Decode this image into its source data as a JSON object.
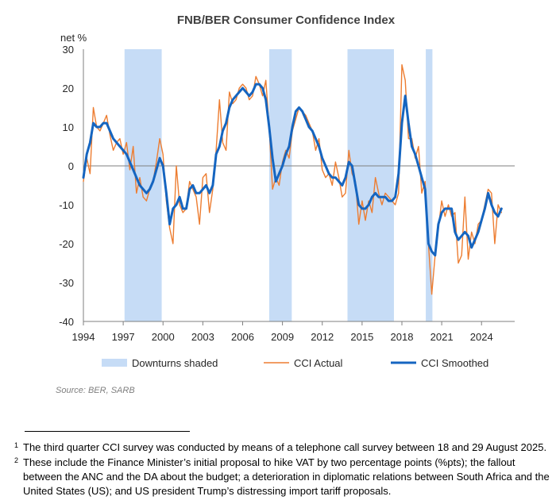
{
  "chart_data": {
    "type": "line",
    "title": "FNB/BER Consumer Confidence Index",
    "ylabel": "net %",
    "ylim": [
      -40,
      30
    ],
    "yticks": [
      30,
      20,
      10,
      0,
      -10,
      -20,
      -30,
      -40
    ],
    "xlim": [
      1994,
      2026.5
    ],
    "xticks": [
      "1994",
      "1997",
      "2000",
      "2003",
      "2006",
      "2009",
      "2012",
      "2015",
      "2018",
      "2021",
      "2024"
    ],
    "colors": {
      "actual": "#ED7D31",
      "smoothed": "#1565C0",
      "downturn": "#C6DCF6",
      "axis": "#7f7f7f"
    },
    "downturns": [
      [
        1997.1,
        1999.9
      ],
      [
        2008.0,
        2009.7
      ],
      [
        2013.9,
        2017.4
      ],
      [
        2019.8,
        2020.3
      ]
    ],
    "legend": [
      {
        "label": "Downturns shaded",
        "kind": "band"
      },
      {
        "label": "CCI Actual",
        "kind": "actual"
      },
      {
        "label": "CCI Smoothed",
        "kind": "smoothed"
      }
    ],
    "source": "Source: BER, SARB",
    "series": [
      {
        "name": "CCI Actual",
        "points": [
          [
            1994.0,
            -4
          ],
          [
            1994.25,
            2
          ],
          [
            1994.5,
            -2
          ],
          [
            1994.75,
            15
          ],
          [
            1995.0,
            10
          ],
          [
            1995.25,
            9
          ],
          [
            1995.5,
            11
          ],
          [
            1995.75,
            13
          ],
          [
            1996.0,
            8
          ],
          [
            1996.25,
            4
          ],
          [
            1996.5,
            6
          ],
          [
            1996.75,
            7
          ],
          [
            1997.0,
            3
          ],
          [
            1997.25,
            6
          ],
          [
            1997.5,
            -1
          ],
          [
            1997.75,
            5
          ],
          [
            1998.0,
            -7
          ],
          [
            1998.25,
            -3
          ],
          [
            1998.5,
            -8
          ],
          [
            1998.75,
            -9
          ],
          [
            1999.0,
            -6
          ],
          [
            1999.25,
            -4
          ],
          [
            1999.5,
            1
          ],
          [
            1999.75,
            7
          ],
          [
            2000.0,
            3
          ],
          [
            2000.25,
            -9
          ],
          [
            2000.5,
            -16
          ],
          [
            2000.75,
            -20
          ],
          [
            2001.0,
            0
          ],
          [
            2001.25,
            -10
          ],
          [
            2001.5,
            -12
          ],
          [
            2001.75,
            -11
          ],
          [
            2002.0,
            -4
          ],
          [
            2002.25,
            -6
          ],
          [
            2002.5,
            -8
          ],
          [
            2002.75,
            -15
          ],
          [
            2003.0,
            -3
          ],
          [
            2003.25,
            -2
          ],
          [
            2003.5,
            -12
          ],
          [
            2003.75,
            -6
          ],
          [
            2004.0,
            4
          ],
          [
            2004.25,
            17
          ],
          [
            2004.5,
            6
          ],
          [
            2004.75,
            4
          ],
          [
            2005.0,
            19
          ],
          [
            2005.25,
            16
          ],
          [
            2005.5,
            17
          ],
          [
            2005.75,
            20
          ],
          [
            2006.0,
            21
          ],
          [
            2006.25,
            20
          ],
          [
            2006.5,
            17
          ],
          [
            2006.75,
            18
          ],
          [
            2007.0,
            23
          ],
          [
            2007.25,
            21
          ],
          [
            2007.5,
            18
          ],
          [
            2007.75,
            22
          ],
          [
            2008.0,
            10
          ],
          [
            2008.25,
            -6
          ],
          [
            2008.5,
            -3
          ],
          [
            2008.75,
            -5
          ],
          [
            2009.0,
            1
          ],
          [
            2009.25,
            4
          ],
          [
            2009.5,
            2
          ],
          [
            2009.75,
            9
          ],
          [
            2010.0,
            12
          ],
          [
            2010.25,
            15
          ],
          [
            2010.5,
            14
          ],
          [
            2010.75,
            13
          ],
          [
            2011.0,
            11
          ],
          [
            2011.25,
            9
          ],
          [
            2011.5,
            4
          ],
          [
            2011.75,
            7
          ],
          [
            2012.0,
            -1
          ],
          [
            2012.25,
            -3
          ],
          [
            2012.5,
            -2
          ],
          [
            2012.75,
            -5
          ],
          [
            2013.0,
            1
          ],
          [
            2013.25,
            -3
          ],
          [
            2013.5,
            -8
          ],
          [
            2013.75,
            -7
          ],
          [
            2014.0,
            4
          ],
          [
            2014.25,
            -2
          ],
          [
            2014.5,
            -4
          ],
          [
            2014.75,
            -15
          ],
          [
            2015.0,
            -9
          ],
          [
            2015.25,
            -14
          ],
          [
            2015.5,
            -9
          ],
          [
            2015.75,
            -12
          ],
          [
            2016.0,
            -3
          ],
          [
            2016.25,
            -7
          ],
          [
            2016.5,
            -10
          ],
          [
            2016.75,
            -7
          ],
          [
            2017.0,
            -8
          ],
          [
            2017.25,
            -9
          ],
          [
            2017.5,
            -10
          ],
          [
            2017.75,
            -7
          ],
          [
            2018.0,
            26
          ],
          [
            2018.25,
            22
          ],
          [
            2018.5,
            7
          ],
          [
            2018.75,
            7
          ],
          [
            2019.0,
            2
          ],
          [
            2019.25,
            5
          ],
          [
            2019.5,
            -7
          ],
          [
            2019.75,
            -4
          ],
          [
            2020.0,
            -20
          ],
          [
            2020.25,
            -33
          ],
          [
            2020.5,
            -23
          ],
          [
            2020.75,
            -16
          ],
          [
            2021.0,
            -9
          ],
          [
            2021.25,
            -13
          ],
          [
            2021.5,
            -10
          ],
          [
            2021.75,
            -13
          ],
          [
            2022.0,
            -12
          ],
          [
            2022.25,
            -25
          ],
          [
            2022.5,
            -23
          ],
          [
            2022.75,
            -8
          ],
          [
            2023.0,
            -24
          ],
          [
            2023.25,
            -17
          ],
          [
            2023.5,
            -20
          ],
          [
            2023.75,
            -15
          ],
          [
            2024.0,
            -14
          ],
          [
            2024.25,
            -10
          ],
          [
            2024.5,
            -6
          ],
          [
            2024.75,
            -7
          ],
          [
            2025.0,
            -20
          ],
          [
            2025.25,
            -10
          ],
          [
            2025.5,
            -12
          ]
        ]
      },
      {
        "name": "CCI Smoothed",
        "points": [
          [
            1994.0,
            -3
          ],
          [
            1994.25,
            3
          ],
          [
            1994.5,
            6
          ],
          [
            1994.75,
            11
          ],
          [
            1995.0,
            10
          ],
          [
            1995.25,
            10
          ],
          [
            1995.5,
            11
          ],
          [
            1995.75,
            11
          ],
          [
            1996.0,
            9
          ],
          [
            1996.25,
            7
          ],
          [
            1996.5,
            6
          ],
          [
            1996.75,
            5
          ],
          [
            1997.0,
            4
          ],
          [
            1997.25,
            3
          ],
          [
            1997.5,
            1
          ],
          [
            1997.75,
            -1
          ],
          [
            1998.0,
            -3
          ],
          [
            1998.25,
            -5
          ],
          [
            1998.5,
            -6
          ],
          [
            1998.75,
            -7
          ],
          [
            1999.0,
            -6
          ],
          [
            1999.25,
            -4
          ],
          [
            1999.5,
            -1
          ],
          [
            1999.75,
            2
          ],
          [
            2000.0,
            0
          ],
          [
            2000.25,
            -7
          ],
          [
            2000.5,
            -15
          ],
          [
            2000.75,
            -11
          ],
          [
            2001.0,
            -10
          ],
          [
            2001.25,
            -8
          ],
          [
            2001.5,
            -11
          ],
          [
            2001.75,
            -11
          ],
          [
            2002.0,
            -6
          ],
          [
            2002.25,
            -5
          ],
          [
            2002.5,
            -7
          ],
          [
            2002.75,
            -7
          ],
          [
            2003.0,
            -6
          ],
          [
            2003.25,
            -5
          ],
          [
            2003.5,
            -7
          ],
          [
            2003.75,
            -5
          ],
          [
            2004.0,
            3
          ],
          [
            2004.25,
            5
          ],
          [
            2004.5,
            9
          ],
          [
            2004.75,
            11
          ],
          [
            2005.0,
            15
          ],
          [
            2005.25,
            17
          ],
          [
            2005.5,
            18
          ],
          [
            2005.75,
            19
          ],
          [
            2006.0,
            20
          ],
          [
            2006.25,
            19
          ],
          [
            2006.5,
            18
          ],
          [
            2006.75,
            19
          ],
          [
            2007.0,
            21
          ],
          [
            2007.25,
            21
          ],
          [
            2007.5,
            20
          ],
          [
            2007.75,
            17
          ],
          [
            2008.0,
            10
          ],
          [
            2008.25,
            2
          ],
          [
            2008.5,
            -4
          ],
          [
            2008.75,
            -2
          ],
          [
            2009.0,
            0
          ],
          [
            2009.25,
            3
          ],
          [
            2009.5,
            5
          ],
          [
            2009.75,
            10
          ],
          [
            2010.0,
            14
          ],
          [
            2010.25,
            15
          ],
          [
            2010.5,
            14
          ],
          [
            2010.75,
            12
          ],
          [
            2011.0,
            10
          ],
          [
            2011.25,
            9
          ],
          [
            2011.5,
            7
          ],
          [
            2011.75,
            5
          ],
          [
            2012.0,
            2
          ],
          [
            2012.25,
            0
          ],
          [
            2012.5,
            -2
          ],
          [
            2012.75,
            -3
          ],
          [
            2013.0,
            -3
          ],
          [
            2013.25,
            -4
          ],
          [
            2013.5,
            -5
          ],
          [
            2013.75,
            -3
          ],
          [
            2014.0,
            1
          ],
          [
            2014.25,
            0
          ],
          [
            2014.5,
            -5
          ],
          [
            2014.75,
            -10
          ],
          [
            2015.0,
            -11
          ],
          [
            2015.25,
            -11
          ],
          [
            2015.5,
            -10
          ],
          [
            2015.75,
            -8
          ],
          [
            2016.0,
            -7
          ],
          [
            2016.25,
            -8
          ],
          [
            2016.5,
            -8
          ],
          [
            2016.75,
            -8
          ],
          [
            2017.0,
            -9
          ],
          [
            2017.25,
            -9
          ],
          [
            2017.5,
            -8
          ],
          [
            2017.75,
            -2
          ],
          [
            2018.0,
            11
          ],
          [
            2018.25,
            18
          ],
          [
            2018.5,
            11
          ],
          [
            2018.75,
            5
          ],
          [
            2019.0,
            3
          ],
          [
            2019.25,
            0
          ],
          [
            2019.5,
            -3
          ],
          [
            2019.75,
            -6
          ],
          [
            2020.0,
            -20
          ],
          [
            2020.25,
            -22
          ],
          [
            2020.5,
            -23
          ],
          [
            2020.75,
            -15
          ],
          [
            2021.0,
            -12
          ],
          [
            2021.25,
            -11
          ],
          [
            2021.5,
            -11
          ],
          [
            2021.75,
            -11
          ],
          [
            2022.0,
            -17
          ],
          [
            2022.25,
            -19
          ],
          [
            2022.5,
            -18
          ],
          [
            2022.75,
            -17
          ],
          [
            2023.0,
            -18
          ],
          [
            2023.25,
            -21
          ],
          [
            2023.5,
            -19
          ],
          [
            2023.75,
            -17
          ],
          [
            2024.0,
            -14
          ],
          [
            2024.25,
            -11
          ],
          [
            2024.5,
            -7
          ],
          [
            2024.75,
            -10
          ],
          [
            2025.0,
            -12
          ],
          [
            2025.25,
            -13
          ],
          [
            2025.5,
            -11
          ]
        ]
      }
    ]
  },
  "footnotes": [
    {
      "mark": "1",
      "text": "The third quarter CCI survey was conducted by means of a telephone call survey between 18 and 29 August 2025."
    },
    {
      "mark": "2",
      "text": "These include the Finance Minister’s initial proposal to hike VAT by two percentage points (%pts); the fallout between the ANC and the DA about the budget; a deterioration in diplomatic relations between South Africa and the United States (US); and US president Trump’s distressing import tariff proposals."
    }
  ]
}
